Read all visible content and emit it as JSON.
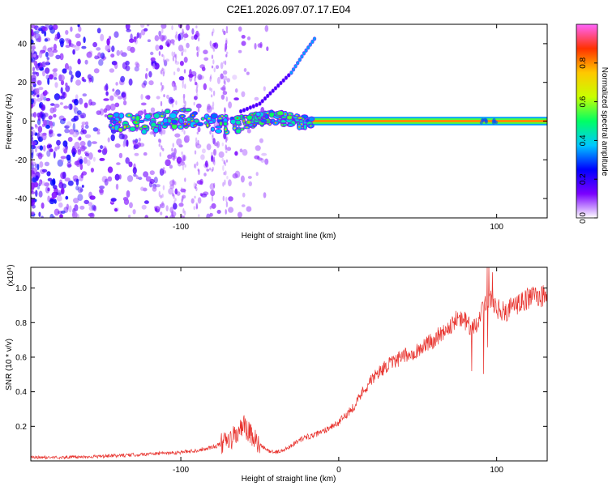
{
  "title": "C2E1.2026.097.07.17.E04",
  "chart_data": [
    {
      "type": "heatmap",
      "name": "spectrogram",
      "xlabel": "Height of straight line (km)",
      "ylabel": "Frequency (Hz)",
      "xlim": [
        -195,
        132
      ],
      "ylim": [
        -50,
        50
      ],
      "x_ticks": [
        -100,
        0,
        100
      ],
      "x_tick_labels": [
        "-100",
        "",
        "100"
      ],
      "y_ticks": [
        -40,
        -20,
        0,
        20,
        40
      ],
      "y_tick_labels": [
        "-40",
        "-20",
        "0",
        "20",
        "40"
      ],
      "colorbar": {
        "label": "Normalized spectral amplitude",
        "range": [
          0,
          1
        ],
        "ticks": [
          0,
          0.2,
          0.4,
          0.6,
          0.8
        ],
        "tick_labels": [
          "0.0",
          "0.2",
          "0.4",
          "0.6",
          "0.8"
        ],
        "colormap": [
          "#ffffff",
          "#7a00ff",
          "#0000ff",
          "#00c8ff",
          "#00ff64",
          "#c8ff00",
          "#ffc800",
          "#ff3200",
          "#ff64ff"
        ]
      },
      "features": {
        "carrier_line": {
          "from_x": -145,
          "to_x": 132,
          "freq_hz": 0,
          "strong_from_x": -20,
          "amplitude": 0.8
        },
        "chirp_branch": {
          "points": [
            [
              -62,
              5
            ],
            [
              -50,
              9
            ],
            [
              -40,
              17
            ],
            [
              -30,
              25
            ],
            [
              -22,
              35
            ],
            [
              -14,
              44
            ]
          ]
        },
        "noise_region_x": [
          -195,
          -60
        ]
      }
    },
    {
      "type": "line",
      "name": "snr",
      "xlabel": "Height of straight line (km)",
      "ylabel": "SNR (10 * v/v)",
      "y_multiplier_label": "(x10⁴)",
      "xlim": [
        -195,
        132
      ],
      "ylim": [
        0,
        1.12
      ],
      "x_ticks": [
        -100,
        0,
        100
      ],
      "x_tick_labels": [
        "-100",
        "0",
        "100"
      ],
      "y_ticks": [
        0.2,
        0.4,
        0.6,
        0.8,
        1
      ],
      "y_tick_labels": [
        "0.2",
        "0.4",
        "0.6",
        "0.8",
        "1.0"
      ],
      "color": "#e8332e",
      "series": [
        {
          "name": "SNR",
          "x": [
            -195,
            -175,
            -155,
            -140,
            -120,
            -100,
            -90,
            -80,
            -70,
            -65,
            -60,
            -55,
            -50,
            -45,
            -40,
            -35,
            -30,
            -25,
            -20,
            -15,
            -10,
            -5,
            0,
            5,
            10,
            15,
            20,
            25,
            30,
            35,
            40,
            45,
            50,
            55,
            60,
            65,
            70,
            75,
            80,
            85,
            90,
            95,
            100,
            105,
            110,
            115,
            120,
            125,
            130
          ],
          "y": [
            0.02,
            0.02,
            0.025,
            0.03,
            0.04,
            0.05,
            0.06,
            0.08,
            0.11,
            0.15,
            0.2,
            0.14,
            0.09,
            0.06,
            0.05,
            0.06,
            0.09,
            0.12,
            0.14,
            0.15,
            0.17,
            0.2,
            0.22,
            0.27,
            0.32,
            0.4,
            0.46,
            0.51,
            0.55,
            0.57,
            0.6,
            0.62,
            0.64,
            0.67,
            0.7,
            0.74,
            0.78,
            0.82,
            0.81,
            0.75,
            0.86,
            0.95,
            0.88,
            0.86,
            0.89,
            0.91,
            0.94,
            0.96,
            0.95
          ]
        }
      ]
    }
  ]
}
